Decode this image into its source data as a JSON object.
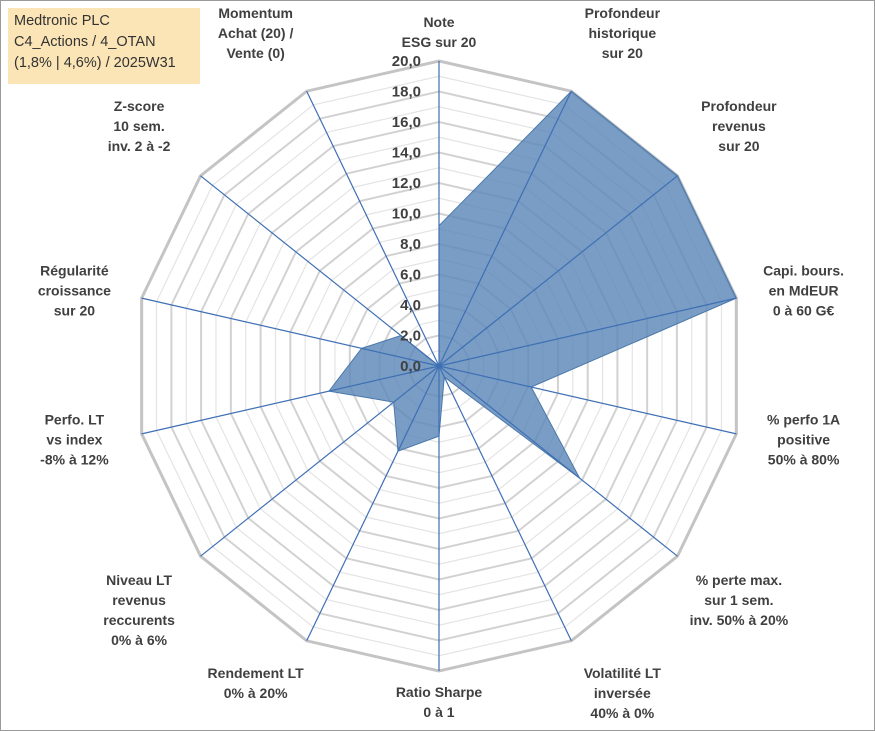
{
  "title": {
    "line1": "Medtronic PLC",
    "line2": "C4_Actions / 4_OTAN",
    "line3": "(1,8% | 4,6%) / 2025W31"
  },
  "chart_data": {
    "type": "radar",
    "rmin": 0,
    "rmax": 20,
    "tick_step": 2,
    "tick_labels": [
      "0,0",
      "2,0",
      "4,0",
      "6,0",
      "8,0",
      "10,0",
      "12,0",
      "14,0",
      "16,0",
      "18,0",
      "20,0"
    ],
    "grid": true,
    "axes": [
      {
        "label": [
          "Note",
          "ESG sur 20"
        ]
      },
      {
        "label": [
          "Profondeur",
          "historique",
          "sur 20"
        ]
      },
      {
        "label": [
          "Profondeur",
          "revenus",
          "sur 20"
        ]
      },
      {
        "label": [
          "Capi. bours.",
          "en MdEUR",
          "0 à 60 G€"
        ]
      },
      {
        "label": [
          "% perfo 1A",
          "positive",
          "50% à 80%"
        ]
      },
      {
        "label": [
          "% perte max.",
          "sur 1 sem.",
          "inv. 50% à 20%"
        ]
      },
      {
        "label": [
          "Volatilité LT",
          "inversée",
          "40% à 0%"
        ]
      },
      {
        "label": [
          "Ratio Sharpe",
          "0 à 1"
        ]
      },
      {
        "label": [
          "Rendement LT",
          "0% à 20%"
        ]
      },
      {
        "label": [
          "Niveau LT",
          "revenus",
          "reccurents",
          "0% à 6%"
        ]
      },
      {
        "label": [
          "Perfo. LT",
          "vs index",
          "-8% à 12%"
        ]
      },
      {
        "label": [
          "Régularité",
          "croissance",
          "sur 20"
        ]
      },
      {
        "label": [
          "Z-score",
          "10 sem.",
          "inv. 2 à -2"
        ]
      },
      {
        "label": [
          "Momentum",
          "Achat (20) /",
          "Vente (0)"
        ]
      }
    ],
    "series": [
      {
        "values": [
          9.2,
          20,
          20,
          20,
          6.2,
          11.8,
          0.8,
          4.6,
          6.2,
          3.8,
          7.4,
          5.2,
          3.2,
          0
        ],
        "color": "#5b88b8"
      }
    ]
  }
}
